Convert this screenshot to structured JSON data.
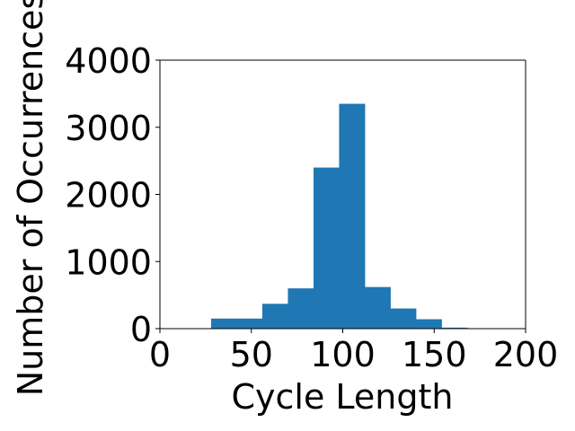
{
  "chart_data": {
    "type": "bar",
    "title": "",
    "xlabel": "Cycle Length",
    "ylabel": "Number of Occurrences",
    "xlim": [
      0,
      200
    ],
    "ylim": [
      0,
      4000
    ],
    "xticks": [
      "0",
      "50",
      "100",
      "150",
      "200"
    ],
    "yticks": [
      "0",
      "1000",
      "2000",
      "3000",
      "4000"
    ],
    "bin_edges": [
      28,
      42,
      56,
      70,
      84,
      98,
      112,
      126,
      140,
      154,
      168
    ],
    "values": [
      150,
      150,
      370,
      600,
      2400,
      3350,
      620,
      300,
      140,
      15
    ],
    "bar_color": "#1f77b4",
    "grid": false
  }
}
